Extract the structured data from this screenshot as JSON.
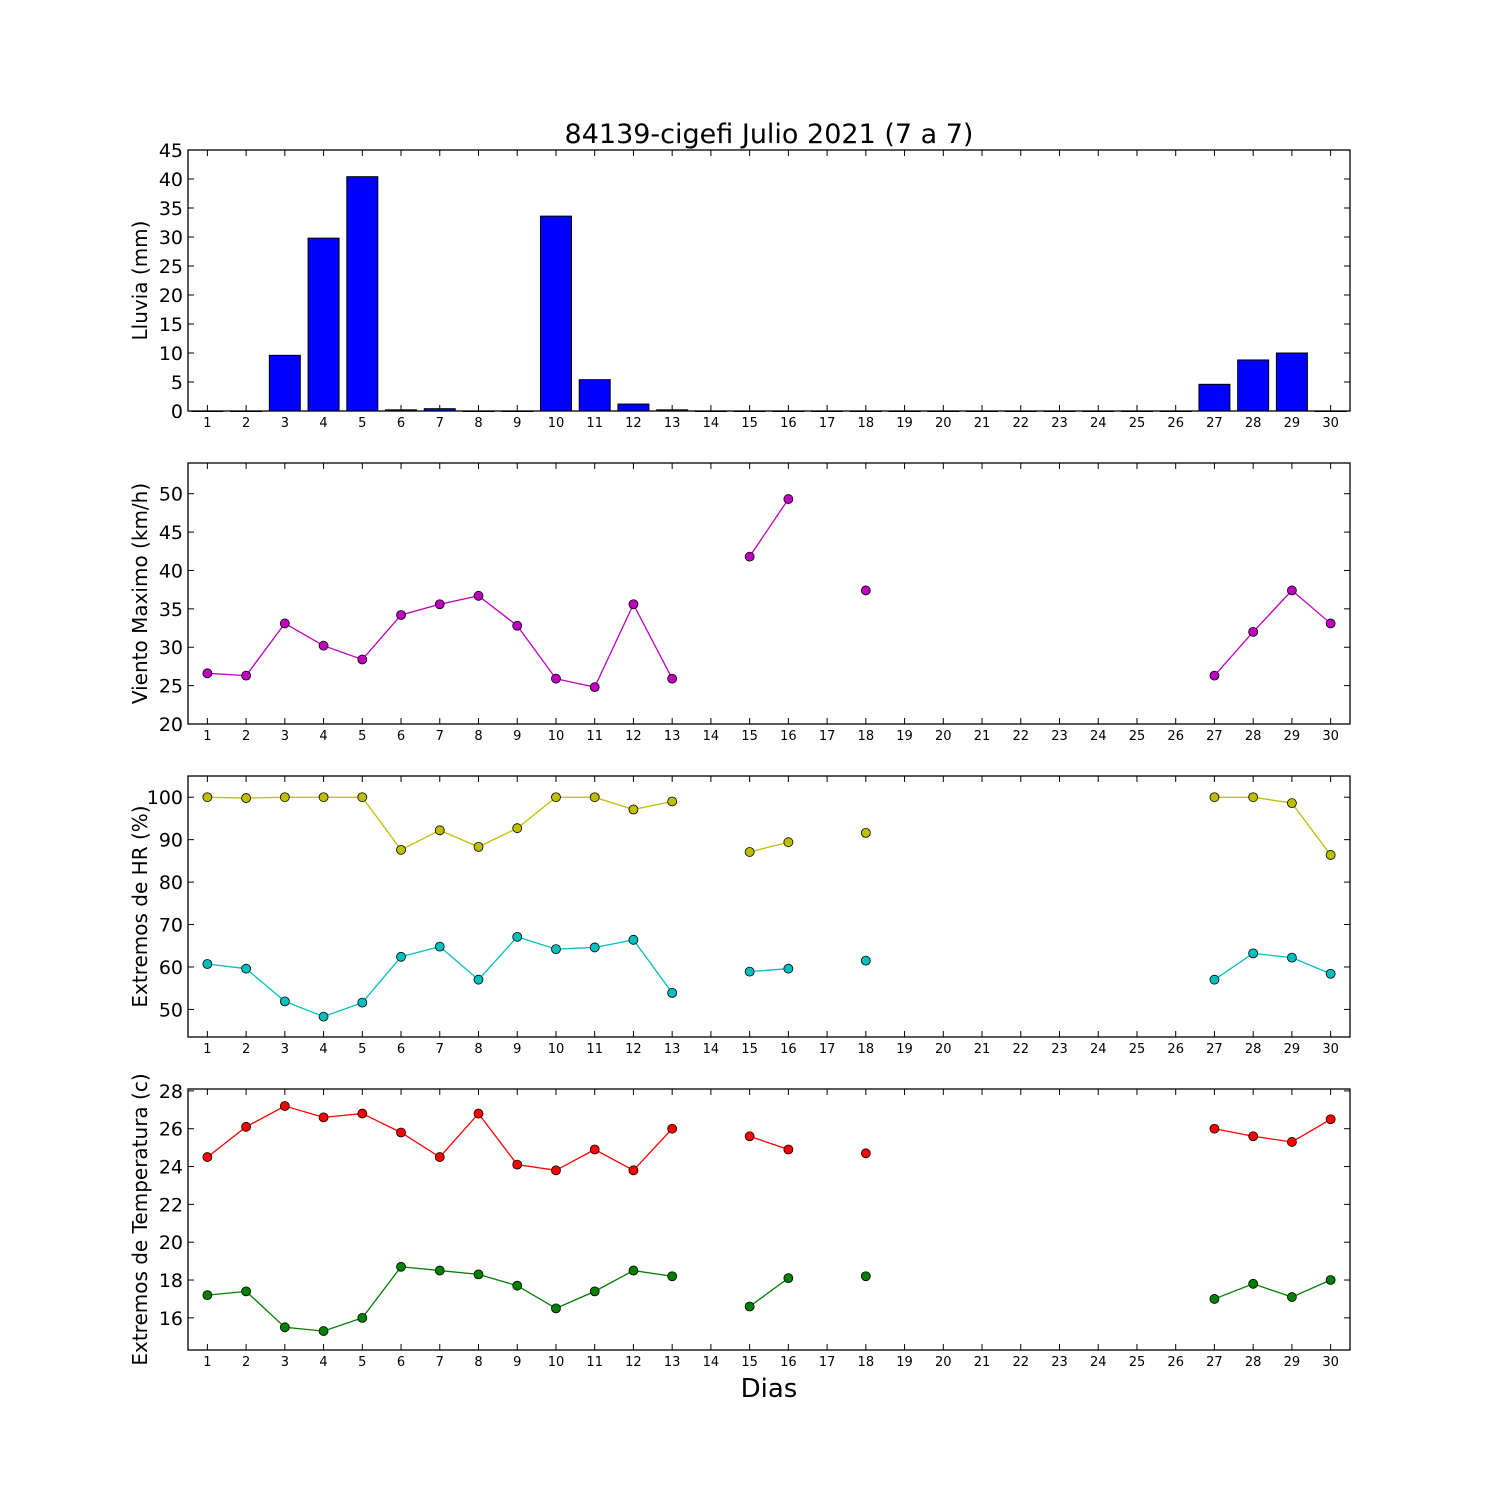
{
  "title": "84139-cigefi Julio 2021  (7 a 7)",
  "xlabel": "Dias",
  "days": [
    "1",
    "2",
    "3",
    "4",
    "5",
    "6",
    "7",
    "8",
    "9",
    "10",
    "11",
    "12",
    "13",
    "14",
    "15",
    "16",
    "17",
    "18",
    "19",
    "20",
    "21",
    "22",
    "23",
    "24",
    "25",
    "26",
    "27",
    "28",
    "29",
    "30"
  ],
  "chart_data": [
    {
      "type": "bar",
      "ylabel": "Lluvia (mm)",
      "ylim": [
        0,
        45
      ],
      "yticks": [
        0,
        5,
        10,
        15,
        20,
        25,
        30,
        35,
        40,
        45
      ],
      "series": [
        {
          "color": "#0000ff",
          "values": [
            0,
            0,
            9.6,
            29.8,
            40.4,
            0.2,
            0.4,
            0,
            0,
            33.6,
            5.4,
            1.2,
            0.2,
            0,
            0,
            0,
            0,
            0,
            0,
            0,
            0,
            0,
            0,
            0,
            0,
            0,
            4.6,
            8.8,
            10,
            0
          ]
        }
      ]
    },
    {
      "type": "line",
      "ylabel": "Viento Maximo (km/h)",
      "ylim": [
        20,
        54
      ],
      "yticks": [
        20,
        25,
        30,
        35,
        40,
        45,
        50
      ],
      "series": [
        {
          "color": "#bf00bf",
          "values": [
            26.6,
            26.3,
            33.1,
            30.2,
            28.4,
            34.2,
            35.6,
            36.7,
            32.8,
            25.9,
            24.8,
            35.6,
            25.9,
            null,
            41.8,
            49.3,
            null,
            37.4,
            null,
            null,
            null,
            null,
            null,
            null,
            null,
            null,
            26.3,
            32.0,
            37.4,
            33.1
          ]
        }
      ]
    },
    {
      "type": "line",
      "ylabel": "Extremos de HR (%)",
      "ylim": [
        43.5,
        105
      ],
      "yticks": [
        50,
        60,
        70,
        80,
        90,
        100
      ],
      "series": [
        {
          "color": "#bfbf00",
          "values": [
            100,
            99.8,
            100,
            100,
            100,
            87.6,
            92.2,
            88.3,
            92.7,
            100,
            100,
            97.1,
            99,
            null,
            87.1,
            89.4,
            null,
            91.6,
            null,
            null,
            null,
            null,
            null,
            null,
            null,
            null,
            100,
            100,
            98.6,
            86.4
          ]
        },
        {
          "color": "#00bfbf",
          "values": [
            60.7,
            59.6,
            51.9,
            48.3,
            51.6,
            62.4,
            64.8,
            57.0,
            67.1,
            64.2,
            64.6,
            66.4,
            53.9,
            null,
            58.9,
            59.6,
            null,
            61.5,
            null,
            null,
            null,
            null,
            null,
            null,
            null,
            null,
            57.0,
            63.2,
            62.2,
            58.4
          ]
        }
      ]
    },
    {
      "type": "line",
      "ylabel": "Extremos de Temperatura (c)",
      "ylim": [
        14.3,
        28.1
      ],
      "yticks": [
        16,
        18,
        20,
        22,
        24,
        26,
        28
      ],
      "series": [
        {
          "color": "#ff0000",
          "values": [
            24.5,
            26.1,
            27.2,
            26.6,
            26.8,
            25.8,
            24.5,
            26.8,
            24.1,
            23.8,
            24.9,
            23.8,
            26.0,
            null,
            25.6,
            24.9,
            null,
            24.7,
            null,
            null,
            null,
            null,
            null,
            null,
            null,
            null,
            26.0,
            25.6,
            25.3,
            26.5
          ]
        },
        {
          "color": "#007f00",
          "values": [
            17.2,
            17.4,
            15.5,
            15.3,
            16.0,
            18.7,
            18.5,
            18.3,
            17.7,
            16.5,
            17.4,
            18.5,
            18.2,
            null,
            16.6,
            18.1,
            null,
            18.2,
            null,
            null,
            null,
            null,
            null,
            null,
            null,
            null,
            17.0,
            17.8,
            17.1,
            18.0
          ]
        }
      ]
    }
  ]
}
